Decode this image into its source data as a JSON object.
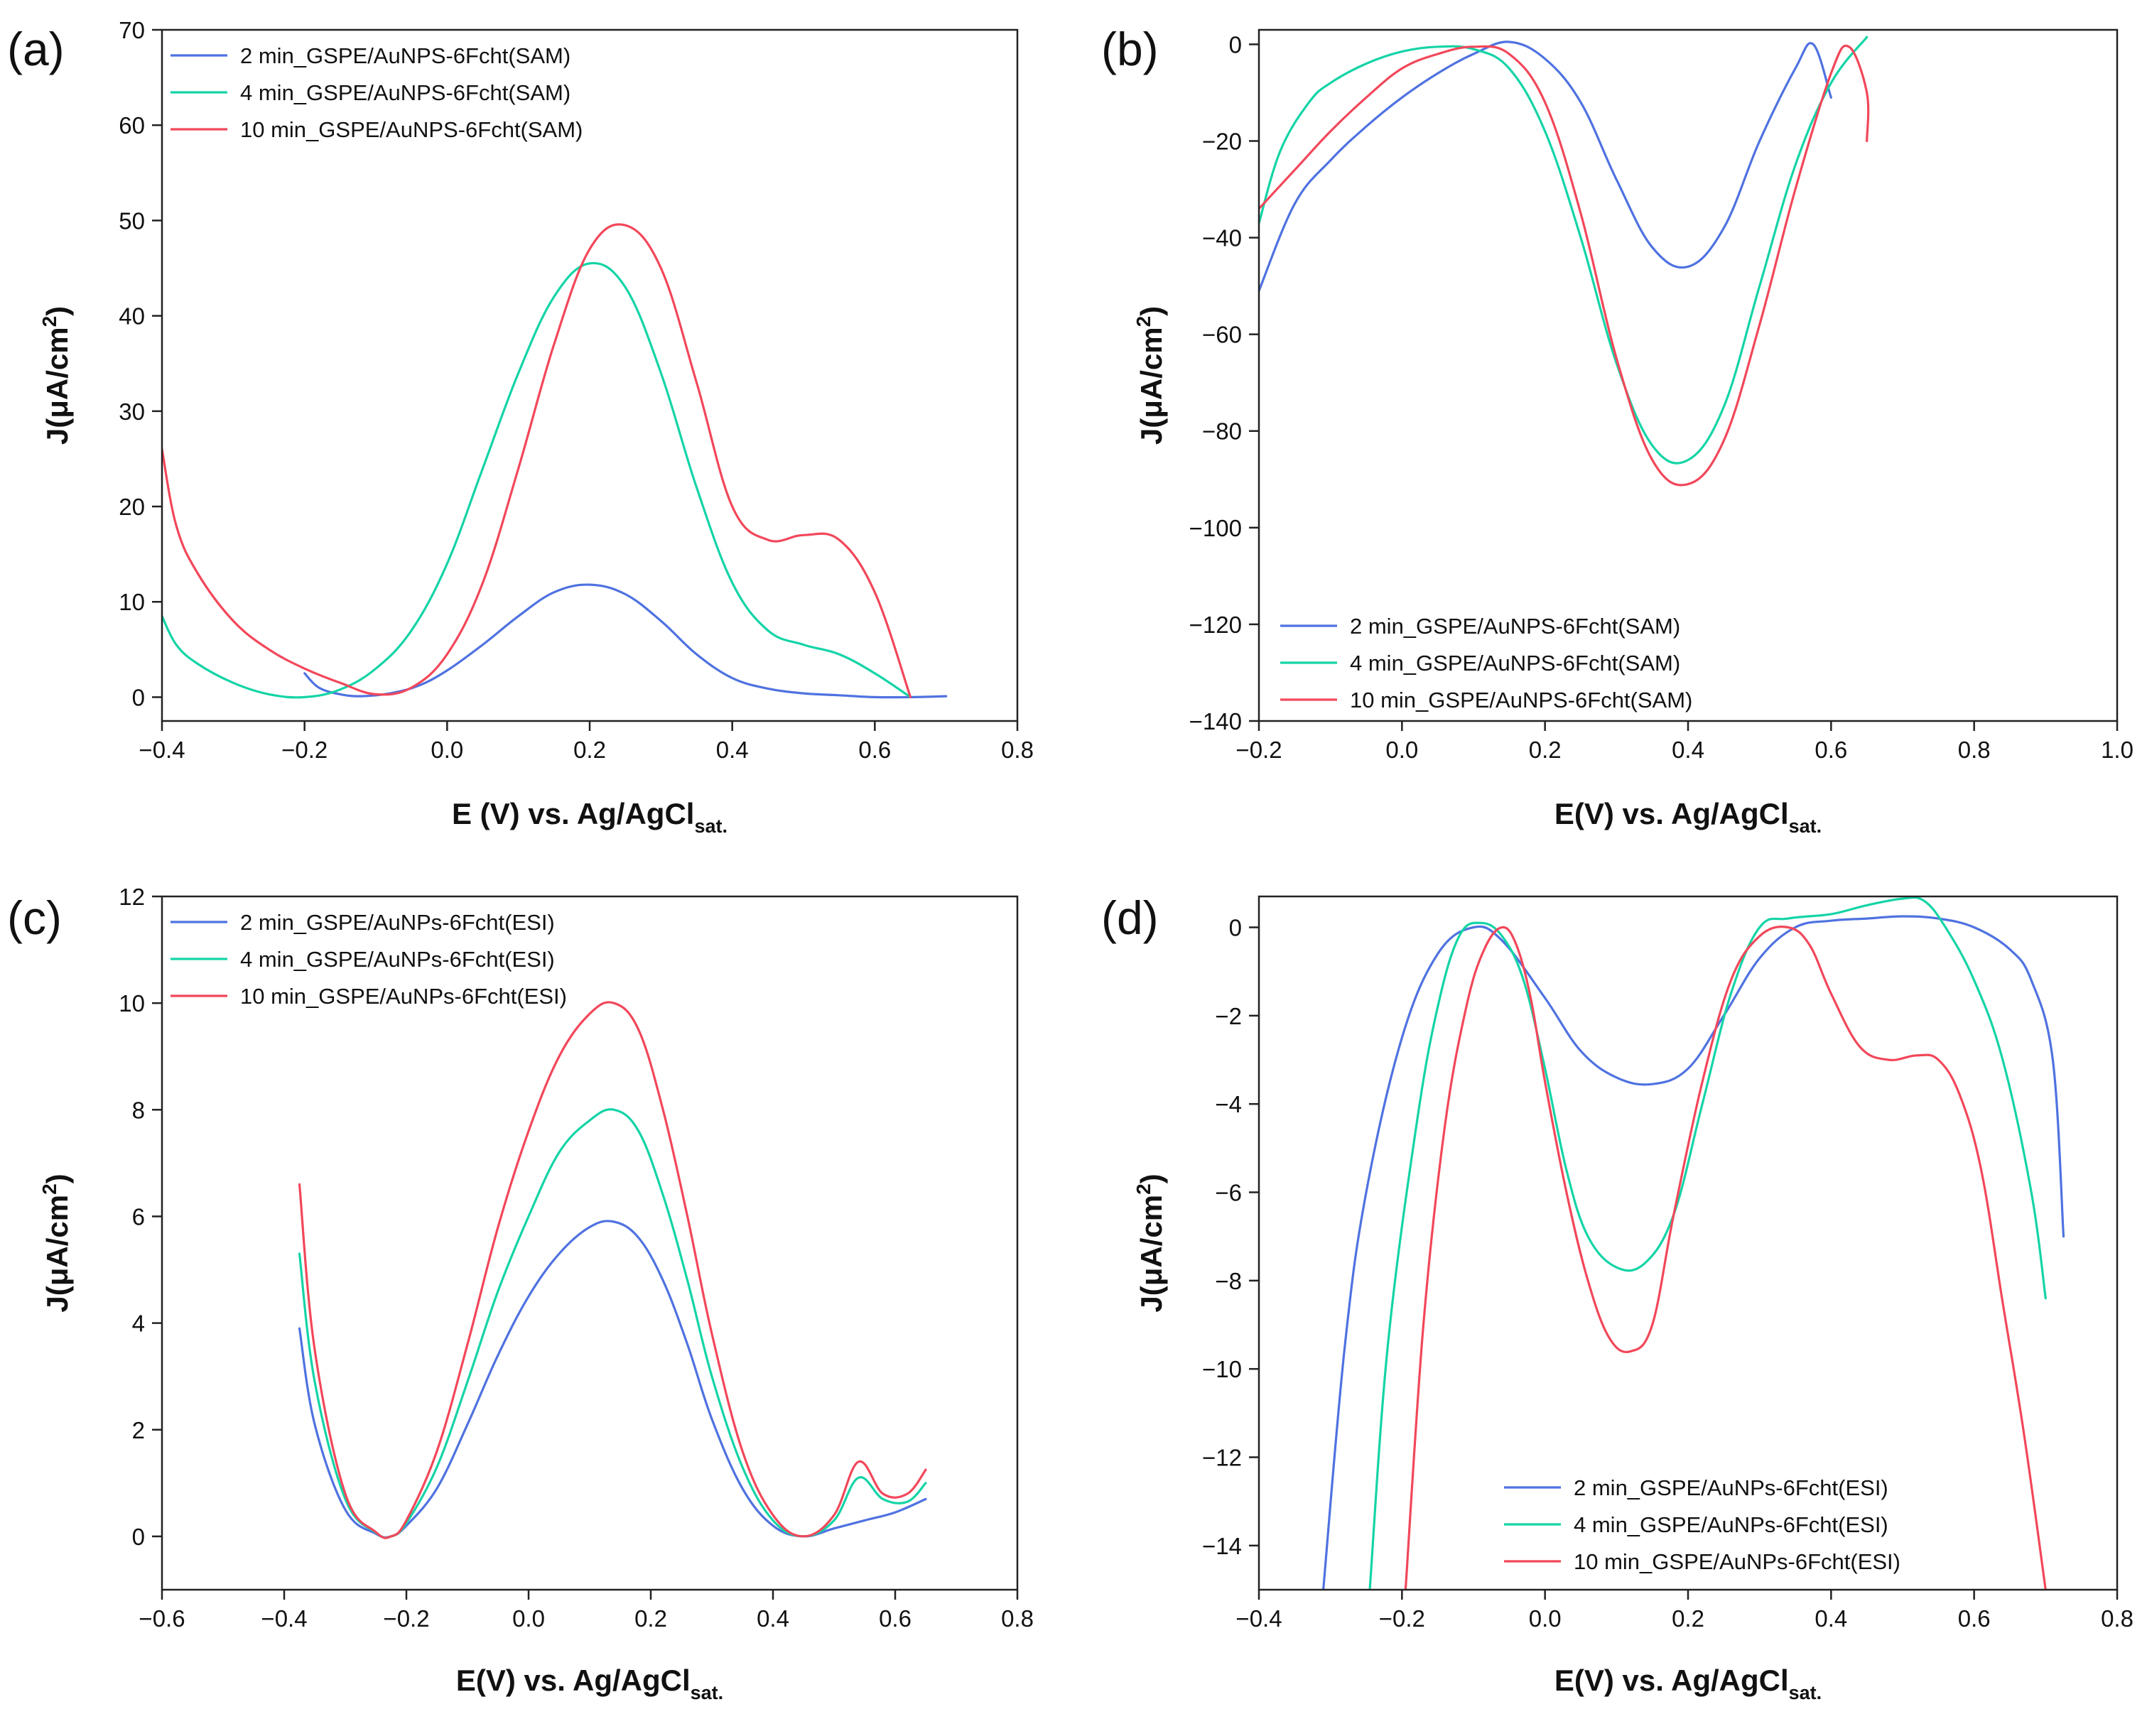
{
  "figure": {
    "colors": {
      "blue": "#4f72e0",
      "green": "#14d4a6",
      "red": "#f2475a"
    }
  },
  "chart_data": [
    {
      "panel_label": "(a)",
      "type": "line",
      "xlabel": "E (V) vs. Ag/AgCl",
      "xlabel_sub": "sat.",
      "ylabel": "J(μA/cm",
      "ylabel_sup": "2",
      "ylabel_end": ")",
      "xlim": [
        -0.4,
        0.8
      ],
      "ylim": [
        -2.5,
        70
      ],
      "xticks": [
        -0.4,
        -0.2,
        0.0,
        0.2,
        0.4,
        0.6,
        0.8
      ],
      "xtick_labels": [
        "−0.4",
        "−0.2",
        "0.0",
        "0.2",
        "0.4",
        "0.6",
        "0.8"
      ],
      "yticks": [
        0,
        10,
        20,
        30,
        40,
        50,
        60,
        70
      ],
      "ytick_labels": [
        "0",
        "10",
        "20",
        "30",
        "40",
        "50",
        "60",
        "70"
      ],
      "legend_position": "top-left",
      "series": [
        {
          "name": "2 min_GSPE/AuNPS-6Fcht(SAM)",
          "color": "blue",
          "x": [
            -0.2,
            -0.18,
            -0.15,
            -0.12,
            -0.08,
            -0.04,
            0.0,
            0.05,
            0.1,
            0.15,
            0.2,
            0.25,
            0.3,
            0.35,
            0.4,
            0.45,
            0.5,
            0.55,
            0.6,
            0.65,
            0.7
          ],
          "y": [
            2.5,
            1.0,
            0.3,
            0.1,
            0.4,
            1.2,
            2.8,
            5.5,
            8.5,
            11.0,
            11.8,
            10.8,
            8.0,
            4.5,
            2.0,
            0.9,
            0.4,
            0.2,
            0.0,
            0.0,
            0.1
          ]
        },
        {
          "name": "4 min_GSPE/AuNPS-6Fcht(SAM)",
          "color": "green",
          "x": [
            -0.4,
            -0.38,
            -0.35,
            -0.3,
            -0.25,
            -0.2,
            -0.15,
            -0.1,
            -0.05,
            0.0,
            0.05,
            0.1,
            0.15,
            0.2,
            0.25,
            0.3,
            0.35,
            0.4,
            0.45,
            0.5,
            0.55,
            0.6,
            0.65
          ],
          "y": [
            8.5,
            5.5,
            3.5,
            1.5,
            0.3,
            0.0,
            0.8,
            3.0,
            7.0,
            14.0,
            24.0,
            34.0,
            42.0,
            45.5,
            43.0,
            34.0,
            22.0,
            12.0,
            7.0,
            5.5,
            4.5,
            2.5,
            0.0
          ]
        },
        {
          "name": "10 min_GSPE/AuNPS-6Fcht(SAM)",
          "color": "red",
          "x": [
            -0.4,
            -0.38,
            -0.35,
            -0.3,
            -0.25,
            -0.2,
            -0.15,
            -0.1,
            -0.05,
            0.0,
            0.05,
            0.1,
            0.15,
            0.2,
            0.25,
            0.3,
            0.35,
            0.4,
            0.45,
            0.5,
            0.55,
            0.6,
            0.65
          ],
          "y": [
            26.0,
            18.0,
            13.0,
            8.0,
            5.0,
            3.0,
            1.5,
            0.3,
            1.0,
            4.5,
            12.0,
            24.0,
            37.0,
            47.0,
            49.5,
            45.0,
            33.0,
            20.0,
            16.5,
            17.0,
            16.5,
            11.0,
            0.0
          ]
        }
      ]
    },
    {
      "panel_label": "(b)",
      "type": "line",
      "xlabel": "E(V) vs. Ag/AgCl",
      "xlabel_sub": "sat.",
      "ylabel": "J(μA/cm",
      "ylabel_sup": "2",
      "ylabel_end": ")",
      "xlim": [
        -0.2,
        1.0
      ],
      "ylim": [
        -140,
        3
      ],
      "xticks": [
        -0.2,
        0.0,
        0.2,
        0.4,
        0.6,
        0.8,
        1.0
      ],
      "xtick_labels": [
        "−0.2",
        "0.0",
        "0.2",
        "0.4",
        "0.6",
        "0.8",
        "1.0"
      ],
      "yticks": [
        0,
        -20,
        -40,
        -60,
        -80,
        -100,
        -120,
        -140
      ],
      "ytick_labels": [
        "0",
        "−20",
        "−40",
        "−60",
        "−80",
        "−100",
        "−120",
        "−140"
      ],
      "legend_position": "bottom-left",
      "series": [
        {
          "name": "2 min_GSPE/AuNPS-6Fcht(SAM)",
          "color": "blue",
          "x": [
            -0.2,
            -0.15,
            -0.1,
            -0.05,
            0.0,
            0.05,
            0.1,
            0.15,
            0.2,
            0.25,
            0.3,
            0.35,
            0.4,
            0.45,
            0.5,
            0.55,
            0.575,
            0.6
          ],
          "y": [
            -51,
            -33,
            -24,
            -17,
            -11,
            -6,
            -2,
            0.5,
            -3,
            -12,
            -28,
            -42,
            -46,
            -38,
            -20,
            -5,
            0,
            -11
          ]
        },
        {
          "name": "4 min_GSPE/AuNPS-6Fcht(SAM)",
          "color": "green",
          "x": [
            -0.2,
            -0.17,
            -0.13,
            -0.1,
            -0.05,
            0.0,
            0.05,
            0.1,
            0.15,
            0.2,
            0.25,
            0.3,
            0.35,
            0.4,
            0.45,
            0.5,
            0.55,
            0.6,
            0.65
          ],
          "y": [
            -37,
            -22,
            -12,
            -8,
            -4,
            -1.5,
            -0.5,
            -1,
            -5,
            -18,
            -40,
            -66,
            -83,
            -86,
            -75,
            -50,
            -25,
            -8,
            1.5
          ]
        },
        {
          "name": "10 min_GSPE/AuNPS-6Fcht(SAM)",
          "color": "red",
          "x": [
            -0.2,
            -0.15,
            -0.1,
            -0.05,
            0.0,
            0.05,
            0.1,
            0.15,
            0.2,
            0.25,
            0.3,
            0.35,
            0.4,
            0.45,
            0.5,
            0.55,
            0.6,
            0.625,
            0.65,
            0.65
          ],
          "y": [
            -34,
            -26,
            -18,
            -11,
            -5,
            -2,
            -0.5,
            -2,
            -12,
            -35,
            -65,
            -86,
            -91,
            -82,
            -58,
            -30,
            -6,
            -0.5,
            -10,
            -20
          ]
        }
      ]
    },
    {
      "panel_label": "(c)",
      "type": "line",
      "xlabel": "E(V) vs. Ag/AgCl",
      "xlabel_sub": "sat.",
      "ylabel": "J(μA/cm",
      "ylabel_sup": "2",
      "ylabel_end": ")",
      "xlim": [
        -0.6,
        0.8
      ],
      "ylim": [
        -1,
        12
      ],
      "xticks": [
        -0.6,
        -0.4,
        -0.2,
        0.0,
        0.2,
        0.4,
        0.6,
        0.8
      ],
      "xtick_labels": [
        "−0.6",
        "−0.4",
        "−0.2",
        "0.0",
        "0.2",
        "0.4",
        "0.6",
        "0.8"
      ],
      "yticks": [
        0,
        2,
        4,
        6,
        8,
        10,
        12
      ],
      "ytick_labels": [
        "0",
        "2",
        "4",
        "6",
        "8",
        "10",
        "12"
      ],
      "legend_position": "top-left",
      "series": [
        {
          "name": "2 min_GSPE/AuNPs-6Fcht(ESI)",
          "color": "blue",
          "x": [
            -0.375,
            -0.35,
            -0.3,
            -0.25,
            -0.225,
            -0.2,
            -0.15,
            -0.1,
            -0.05,
            0.0,
            0.05,
            0.1,
            0.14,
            0.18,
            0.22,
            0.26,
            0.3,
            0.35,
            0.4,
            0.45,
            0.5,
            0.55,
            0.6,
            0.65
          ],
          "y": [
            3.9,
            2.1,
            0.5,
            0.05,
            0.0,
            0.2,
            0.9,
            2.1,
            3.4,
            4.5,
            5.3,
            5.8,
            5.9,
            5.6,
            4.8,
            3.6,
            2.2,
            0.9,
            0.2,
            0.0,
            0.15,
            0.3,
            0.45,
            0.7
          ]
        },
        {
          "name": "4 min_GSPE/AuNPs-6Fcht(ESI)",
          "color": "green",
          "x": [
            -0.375,
            -0.35,
            -0.3,
            -0.25,
            -0.225,
            -0.2,
            -0.15,
            -0.1,
            -0.05,
            0.0,
            0.05,
            0.1,
            0.14,
            0.18,
            0.22,
            0.26,
            0.3,
            0.35,
            0.4,
            0.45,
            0.5,
            0.54,
            0.58,
            0.62,
            0.65
          ],
          "y": [
            5.3,
            2.9,
            0.7,
            0.07,
            0.0,
            0.25,
            1.3,
            2.9,
            4.6,
            6.0,
            7.2,
            7.8,
            8.0,
            7.6,
            6.4,
            4.8,
            3.0,
            1.3,
            0.3,
            0.0,
            0.3,
            1.1,
            0.7,
            0.65,
            1.0
          ]
        },
        {
          "name": "10 min_GSPE/AuNPs-6Fcht(ESI)",
          "color": "red",
          "x": [
            -0.375,
            -0.35,
            -0.3,
            -0.25,
            -0.225,
            -0.2,
            -0.15,
            -0.1,
            -0.05,
            0.0,
            0.05,
            0.1,
            0.14,
            0.18,
            0.22,
            0.26,
            0.3,
            0.35,
            0.4,
            0.45,
            0.5,
            0.54,
            0.58,
            0.62,
            0.65
          ],
          "y": [
            6.6,
            3.5,
            0.8,
            0.08,
            0.0,
            0.3,
            1.6,
            3.6,
            5.8,
            7.6,
            9.0,
            9.8,
            10.0,
            9.5,
            8.0,
            6.0,
            3.8,
            1.6,
            0.4,
            0.0,
            0.4,
            1.4,
            0.8,
            0.8,
            1.25
          ]
        }
      ]
    },
    {
      "panel_label": "(d)",
      "type": "line",
      "xlabel": "E(V) vs. Ag/AgCl",
      "xlabel_sub": "sat.",
      "ylabel": "J(μA/cm",
      "ylabel_sup": "2",
      "ylabel_end": ")",
      "xlim": [
        -0.4,
        0.8
      ],
      "ylim": [
        -15,
        0.7
      ],
      "xticks": [
        -0.4,
        -0.2,
        0.0,
        0.2,
        0.4,
        0.6,
        0.8
      ],
      "xtick_labels": [
        "−0.4",
        "−0.2",
        "0.0",
        "0.2",
        "0.4",
        "0.6",
        "0.8"
      ],
      "yticks": [
        0,
        -2,
        -4,
        -6,
        -8,
        -10,
        -12,
        -14
      ],
      "ytick_labels": [
        "0",
        "−2",
        "−4",
        "−6",
        "−8",
        "−10",
        "−12",
        "−14"
      ],
      "legend_position": "bottom-right",
      "series": [
        {
          "name": "2 min_GSPE/AuNPs-6Fcht(ESI)",
          "color": "blue",
          "x": [
            -0.31,
            -0.28,
            -0.25,
            -0.2,
            -0.15,
            -0.1,
            -0.06,
            0.0,
            0.05,
            0.1,
            0.15,
            0.2,
            0.25,
            0.3,
            0.35,
            0.4,
            0.45,
            0.5,
            0.55,
            0.6,
            0.65,
            0.68,
            0.71,
            0.725
          ],
          "y": [
            -15,
            -9.5,
            -6,
            -2.5,
            -0.6,
            0.0,
            -0.3,
            -1.6,
            -2.8,
            -3.4,
            -3.55,
            -3.2,
            -2.0,
            -0.7,
            0.0,
            0.15,
            0.2,
            0.25,
            0.2,
            0.0,
            -0.5,
            -1.2,
            -3.0,
            -7.0
          ]
        },
        {
          "name": "4 min_GSPE/AuNPs-6Fcht(ESI)",
          "color": "green",
          "x": [
            -0.245,
            -0.22,
            -0.18,
            -0.15,
            -0.12,
            -0.09,
            -0.06,
            -0.03,
            0.0,
            0.03,
            0.06,
            0.1,
            0.14,
            0.18,
            0.22,
            0.26,
            0.3,
            0.34,
            0.4,
            0.45,
            0.5,
            0.53,
            0.56,
            0.6,
            0.64,
            0.68,
            0.7
          ],
          "y": [
            -15,
            -9.5,
            -4.5,
            -1.8,
            -0.2,
            0.1,
            -0.2,
            -1.2,
            -3.2,
            -5.5,
            -7.0,
            -7.7,
            -7.6,
            -6.5,
            -4.0,
            -1.5,
            0.0,
            0.2,
            0.3,
            0.5,
            0.65,
            0.6,
            0.0,
            -1.2,
            -3.0,
            -6.0,
            -8.4
          ]
        },
        {
          "name": "10 min_GSPE/AuNPs-6Fcht(ESI)",
          "color": "red",
          "x": [
            -0.195,
            -0.17,
            -0.14,
            -0.11,
            -0.085,
            -0.06,
            -0.04,
            -0.02,
            0.0,
            0.03,
            0.06,
            0.09,
            0.12,
            0.15,
            0.18,
            0.22,
            0.26,
            0.3,
            0.34,
            0.37,
            0.4,
            0.44,
            0.48,
            0.52,
            0.55,
            0.58,
            0.61,
            0.64,
            0.67,
            0.7
          ],
          "y": [
            -15,
            -9,
            -4.5,
            -1.8,
            -0.5,
            0.0,
            -0.4,
            -1.6,
            -3.5,
            -6.0,
            -8.0,
            -9.3,
            -9.6,
            -9.0,
            -6.5,
            -3.5,
            -1.2,
            -0.2,
            0.0,
            -0.4,
            -1.5,
            -2.7,
            -3.0,
            -2.9,
            -3.0,
            -3.8,
            -5.5,
            -8.5,
            -11.5,
            -15
          ]
        }
      ]
    }
  ]
}
